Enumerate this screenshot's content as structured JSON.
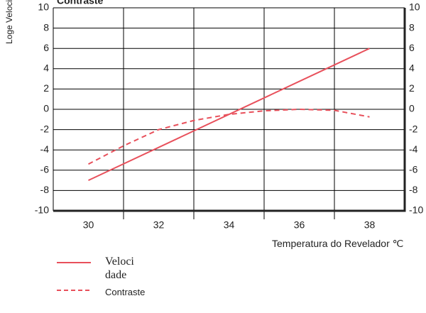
{
  "chart_data": {
    "type": "line",
    "title": "Contraste",
    "y_label": "Loge Velocidade",
    "x_label": "Temperatura do Revelador ℃",
    "xlim": [
      29,
      39
    ],
    "xticks": [
      30,
      32,
      34,
      36,
      38
    ],
    "xminor_ticks": [
      31,
      33,
      35,
      37
    ],
    "ylim": [
      -10,
      10
    ],
    "yticks": [
      -10,
      -8,
      -6,
      -4,
      -2,
      0,
      2,
      4,
      6,
      8,
      10
    ],
    "y2lim": [
      -10,
      10
    ],
    "y2ticks": [
      -10,
      -8,
      -6,
      -4,
      -2,
      0,
      2,
      4,
      6,
      8,
      10
    ],
    "grid": true,
    "series": [
      {
        "name": "Velocidade",
        "color": "#e8505b",
        "style": "solid",
        "x": [
          30,
          38
        ],
        "values": [
          -7,
          6
        ]
      },
      {
        "name": "Contraste",
        "color": "#e8505b",
        "style": "dashed",
        "x": [
          30,
          31,
          32,
          33,
          34,
          35,
          36,
          37,
          38
        ],
        "values": [
          -5.4,
          -3.6,
          -2.0,
          -1.1,
          -0.5,
          -0.15,
          0,
          -0.1,
          -0.75
        ]
      }
    ]
  }
}
